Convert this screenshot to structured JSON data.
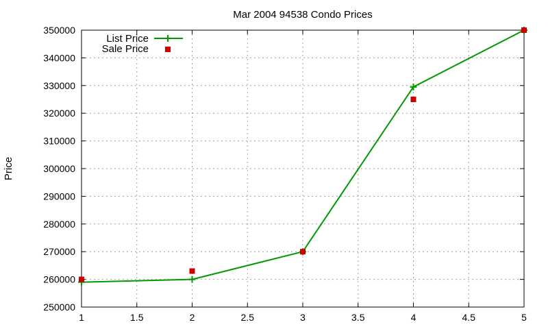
{
  "chart_data": {
    "type": "line",
    "title": "Mar 2004 94538 Condo Prices",
    "xlabel": "",
    "ylabel": "Price",
    "xlim": [
      1,
      5
    ],
    "ylim": [
      250000,
      350000
    ],
    "x_ticks": [
      1,
      1.5,
      2,
      2.5,
      3,
      3.5,
      4,
      4.5,
      5
    ],
    "x_tick_labels": [
      "1",
      "1.5",
      "2",
      "2.5",
      "3",
      "3.5",
      "4",
      "4.5",
      "5"
    ],
    "y_ticks": [
      250000,
      260000,
      270000,
      280000,
      290000,
      300000,
      310000,
      320000,
      330000,
      340000,
      350000
    ],
    "y_tick_labels": [
      "250000",
      "260000",
      "270000",
      "280000",
      "290000",
      "300000",
      "310000",
      "320000",
      "330000",
      "340000",
      "350000"
    ],
    "grid": true,
    "legend_position": "top-left",
    "series": [
      {
        "name": "List Price",
        "style": "lines+points",
        "marker": "plus",
        "color": "#009900",
        "x": [
          1,
          2,
          3,
          4,
          5
        ],
        "y": [
          259000,
          260000,
          270000,
          329500,
          350000
        ]
      },
      {
        "name": "Sale Price",
        "style": "points",
        "marker": "square",
        "color": "#cc0000",
        "x": [
          1,
          2,
          3,
          4,
          5
        ],
        "y": [
          260000,
          263000,
          270000,
          325000,
          350000
        ]
      }
    ]
  }
}
